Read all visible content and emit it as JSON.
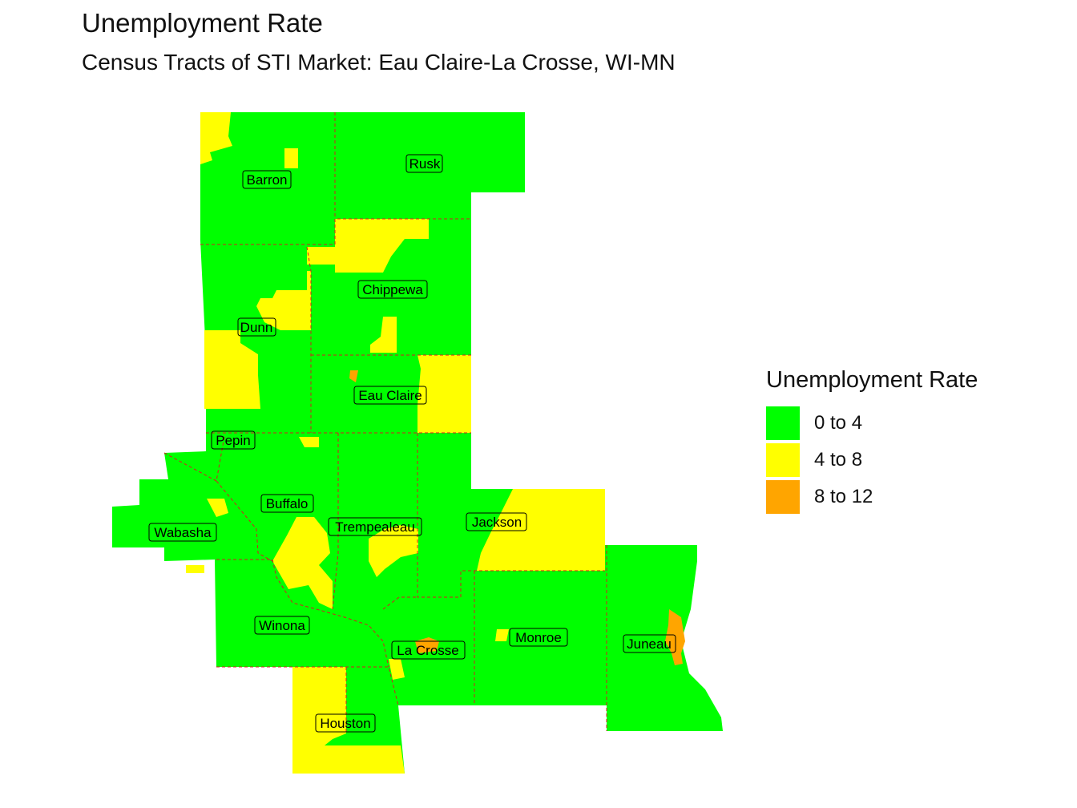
{
  "title": "Unemployment Rate",
  "subtitle": "Census Tracts of STI Market: Eau Claire-La Crosse, WI-MN",
  "legend": {
    "title": "Unemployment Rate",
    "items": [
      {
        "label": "0 to 4",
        "color": "#00ff00"
      },
      {
        "label": "4 to 8",
        "color": "#ffff00"
      },
      {
        "label": "8 to 12",
        "color": "#ffa500"
      }
    ]
  },
  "counties": [
    "Barron",
    "Rusk",
    "Chippewa",
    "Dunn",
    "Eau Claire",
    "Pepin",
    "Buffalo",
    "Wabasha",
    "Trempealeau",
    "Jackson",
    "Winona",
    "La Crosse",
    "Monroe",
    "Juneau",
    "Houston"
  ],
  "colors": {
    "low": "#00ff00",
    "mid": "#ffff00",
    "high": "#ffa500",
    "county_border": "#d4201f"
  }
}
